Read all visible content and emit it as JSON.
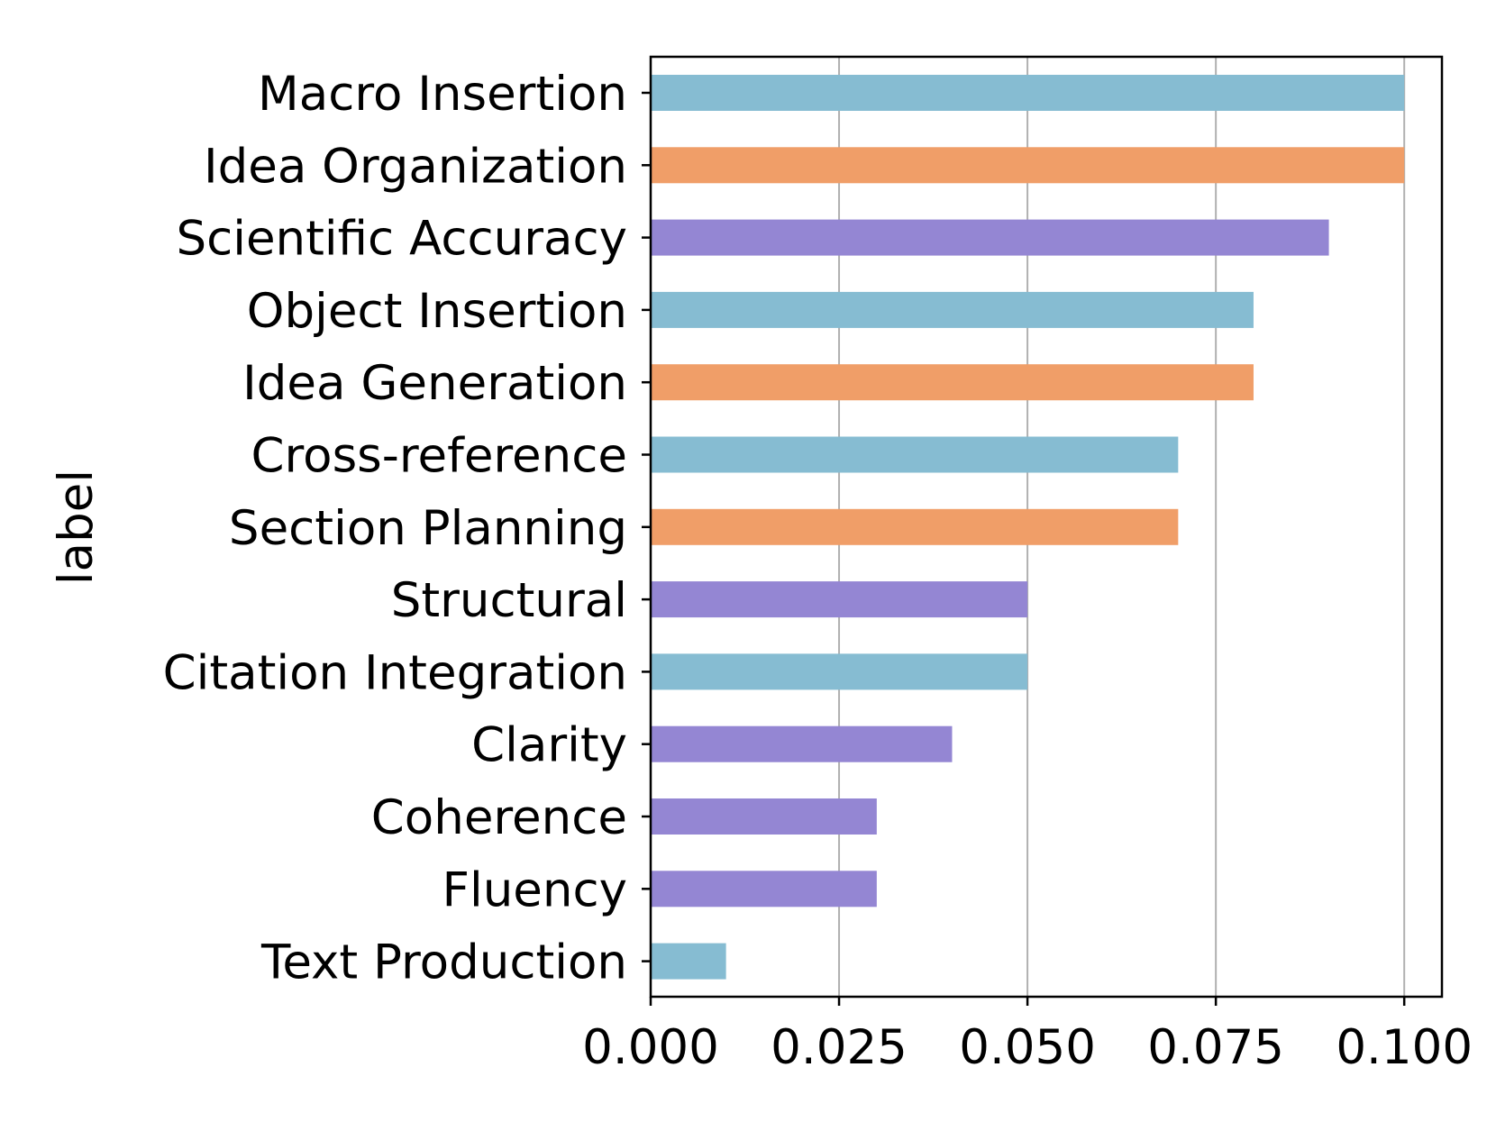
{
  "chart_data": {
    "type": "bar",
    "orientation": "horizontal",
    "ylabel": "label",
    "xlabel": "",
    "xlim": [
      0,
      0.105
    ],
    "xticks": [
      "0.000",
      "0.025",
      "0.050",
      "0.075",
      "0.100"
    ],
    "xtick_values": [
      0,
      0.025,
      0.05,
      0.075,
      0.1
    ],
    "grid": "vertical",
    "bars": [
      {
        "label": "Macro Insertion",
        "value": 0.1,
        "color": "#86bcd2"
      },
      {
        "label": "Idea Organization",
        "value": 0.1,
        "color": "#f09e68"
      },
      {
        "label": "Scientific Accuracy",
        "value": 0.09,
        "color": "#9486d3"
      },
      {
        "label": "Object Insertion",
        "value": 0.08,
        "color": "#86bcd2"
      },
      {
        "label": "Idea Generation",
        "value": 0.08,
        "color": "#f09e68"
      },
      {
        "label": "Cross-reference",
        "value": 0.07,
        "color": "#86bcd2"
      },
      {
        "label": "Section Planning",
        "value": 0.07,
        "color": "#f09e68"
      },
      {
        "label": "Structural",
        "value": 0.05,
        "color": "#9486d3"
      },
      {
        "label": "Citation Integration",
        "value": 0.05,
        "color": "#86bcd2"
      },
      {
        "label": "Clarity",
        "value": 0.04,
        "color": "#9486d3"
      },
      {
        "label": "Coherence",
        "value": 0.03,
        "color": "#9486d3"
      },
      {
        "label": "Fluency",
        "value": 0.03,
        "color": "#9486d3"
      },
      {
        "label": "Text Production",
        "value": 0.01,
        "color": "#86bcd2"
      }
    ]
  }
}
